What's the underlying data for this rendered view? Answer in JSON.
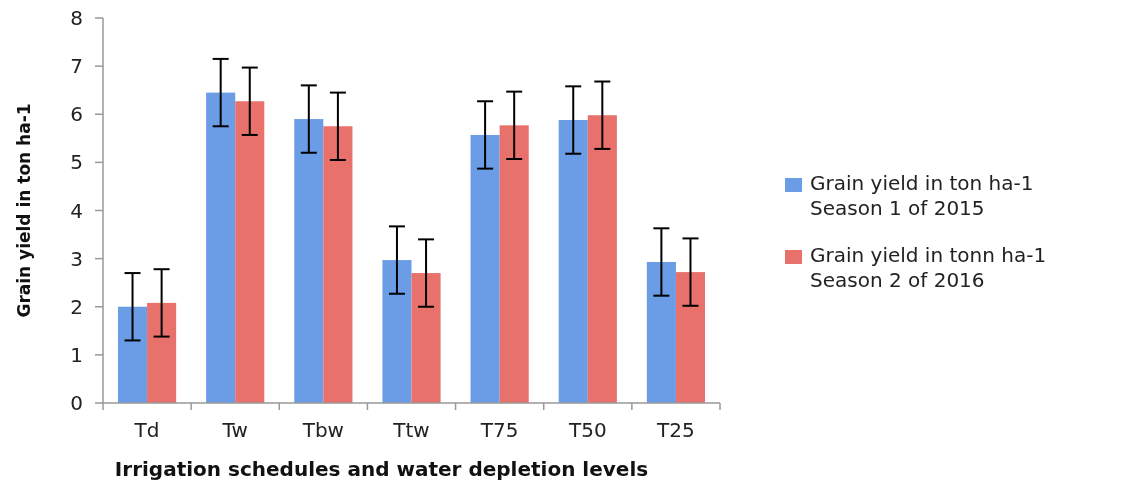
{
  "chart_data": {
    "type": "bar",
    "xlabel": "Irrigation schedules and water depletion levels",
    "ylabel": "Grain yield in ton ha-1",
    "categories": [
      "Td",
      "Tw",
      "Tbw",
      "Ttw",
      "T75",
      "T50",
      "T25"
    ],
    "series": [
      {
        "name": "Grain yield in ton ha-1 Season 1 of 2015",
        "color": "#6a9de6",
        "values": [
          2.0,
          6.45,
          5.9,
          2.97,
          5.57,
          5.88,
          2.93
        ],
        "errors": [
          0.7,
          0.7,
          0.7,
          0.7,
          0.7,
          0.7,
          0.7
        ]
      },
      {
        "name": "Grain yield in tonn ha-1 Season 2 of 2016",
        "color": "#e8716c",
        "values": [
          2.08,
          6.27,
          5.75,
          2.7,
          5.77,
          5.98,
          2.72
        ],
        "errors": [
          0.7,
          0.7,
          0.7,
          0.7,
          0.7,
          0.7,
          0.7
        ]
      }
    ],
    "ylim": [
      0,
      8
    ],
    "yticks": [
      0,
      1,
      2,
      3,
      4,
      5,
      6,
      7,
      8
    ],
    "grid": false,
    "legend": "right"
  }
}
